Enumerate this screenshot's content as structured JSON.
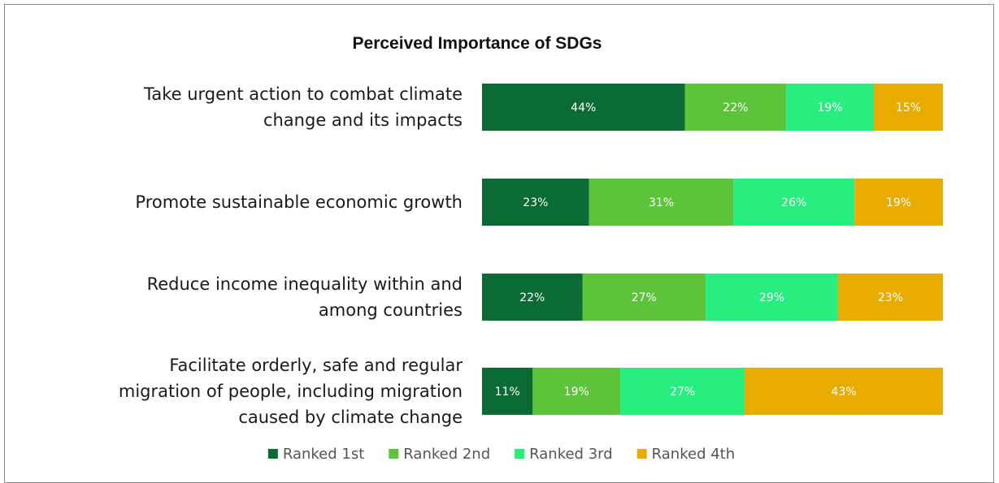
{
  "chart_data": {
    "type": "bar",
    "orientation": "horizontal",
    "stacked": true,
    "title": "Perceived Importance of SDGs",
    "categories": [
      [
        "Take urgent action to combat climate",
        "change and its impacts"
      ],
      [
        "Promote sustainable economic growth"
      ],
      [
        "Reduce income inequality within and",
        "among countries"
      ],
      [
        "Facilitate orderly, safe and regular",
        "migration of people, including migration",
        "caused by climate change"
      ]
    ],
    "series": [
      {
        "name": "Ranked 1st",
        "color": "#0b6b35",
        "values": [
          44,
          23,
          22,
          11
        ],
        "labels": [
          "44%",
          "23%",
          "22%",
          "11%"
        ]
      },
      {
        "name": "Ranked 2nd",
        "color": "#5cc33a",
        "values": [
          22,
          31,
          27,
          19
        ],
        "labels": [
          "22%",
          "31%",
          "27%",
          "19%"
        ]
      },
      {
        "name": "Ranked 3rd",
        "color": "#27ee7f",
        "values": [
          19,
          26,
          29,
          27
        ],
        "labels": [
          "19%",
          "26%",
          "29%",
          "27%"
        ]
      },
      {
        "name": "Ranked 4th",
        "color": "#e8ac00",
        "values": [
          15,
          19,
          23,
          43
        ],
        "labels": [
          "15%",
          "19%",
          "23%",
          "43%"
        ]
      }
    ],
    "legend_position": "bottom",
    "grid": false,
    "axes_visible": false
  }
}
